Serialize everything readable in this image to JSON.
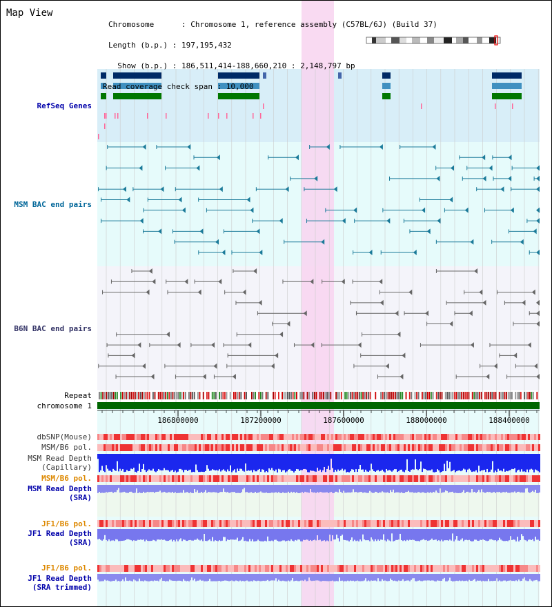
{
  "title": "Map View",
  "info": {
    "chromosome": "Chromosome      : Chromosome 1, reference assembly (C57BL/6J) (Build 37)",
    "length": "Length (b.p.) : 197,195,432",
    "show": "  Show (b.p.) : 186,511,414-188,660,210 : 2,148,797 bp",
    "coverage": "Read coverage check span : 10,000"
  },
  "tracks": {
    "refseq": "RefSeq Genes",
    "msm_bac": "MSM BAC end pairs",
    "b6n_bac": "B6N BAC end pairs",
    "repeat": "Repeat",
    "chromosome": "chromosome 1",
    "dbsnp": "dbSNP(Mouse)",
    "msm_b6_pol_1": "MSM/B6 pol.",
    "msm_read_depth_cap_1": "MSM Read Depth",
    "msm_read_depth_cap_2": "(Capillary)",
    "msm_b6_pol_2": "MSM/B6 pol.",
    "msm_read_depth_sra_1": "MSM Read Depth",
    "msm_read_depth_sra_2": "(SRA)",
    "jf1_b6_pol_1": "JF1/B6 pol.",
    "jf1_read_depth_sra_1": "JF1 Read Depth",
    "jf1_read_depth_sra_2": "(SRA)",
    "jf1_b6_pol_2": "JF1/B6 pol.",
    "jf1_read_depth_trim_1": "JF1 Read Depth",
    "jf1_read_depth_trim_2": "(SRA trimmed)"
  },
  "axis_ticks": [
    "186800000",
    "187200000",
    "187600000",
    "188000000",
    "188400000"
  ],
  "colors": {
    "refseq_label": "#0000aa",
    "msm_label": "#006699",
    "b6n_label": "#333366",
    "orange_label": "#dd8800",
    "highlight": "#f8d4f0",
    "chromosome_bar": "#006600"
  }
}
